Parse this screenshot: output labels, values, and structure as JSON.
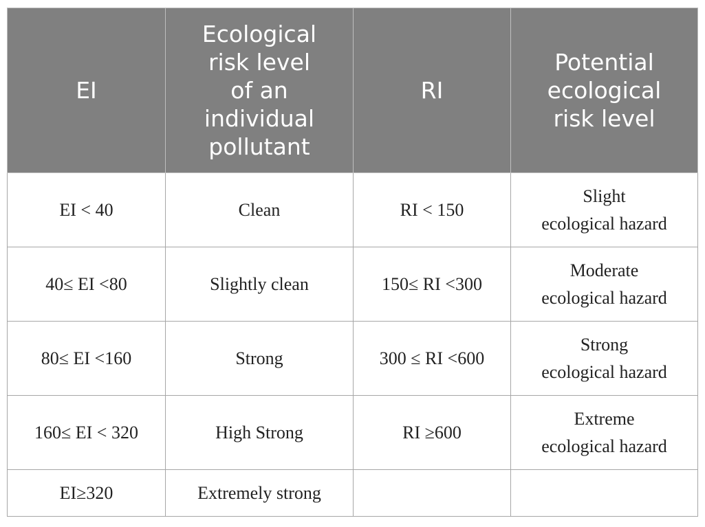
{
  "table": {
    "headers": [
      [
        "EI"
      ],
      [
        "Ecological",
        "risk level",
        "of an",
        "individual",
        "pollutant"
      ],
      [
        "RI"
      ],
      [
        "Potential",
        "ecological",
        "risk level"
      ]
    ],
    "rows": [
      [
        [
          "EI < 40"
        ],
        [
          "Clean"
        ],
        [
          "RI < 150"
        ],
        [
          "Slight",
          "ecological hazard"
        ]
      ],
      [
        [
          "40≤ EI <80"
        ],
        [
          "Slightly clean"
        ],
        [
          "150≤ RI <300"
        ],
        [
          "Moderate",
          "ecological hazard"
        ]
      ],
      [
        [
          "80≤ EI <160"
        ],
        [
          "Strong"
        ],
        [
          "300 ≤ RI <600"
        ],
        [
          "Strong",
          "ecological hazard"
        ]
      ],
      [
        [
          "160≤ EI < 320"
        ],
        [
          "High Strong"
        ],
        [
          "RI ≥600"
        ],
        [
          "Extreme",
          "ecological hazard"
        ]
      ],
      [
        [
          "EI≥320"
        ],
        [
          "Extremely strong"
        ],
        [
          ""
        ],
        [
          ""
        ]
      ]
    ]
  },
  "colors": {
    "header_bg": "#808080",
    "header_text": "#ffffff",
    "border": "#a6a6a6"
  }
}
